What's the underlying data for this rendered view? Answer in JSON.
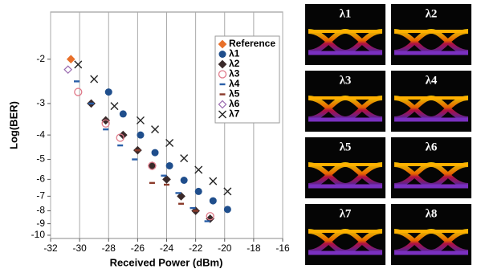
{
  "chart_data": {
    "type": "scatter",
    "xlabel": "Received Power (dBm)",
    "ylabel": "Log(BER)",
    "xlim": [
      -32,
      -16
    ],
    "xticks": [
      -32,
      -30,
      -28,
      -26,
      -24,
      -22,
      -20,
      -18,
      -16
    ],
    "ylim": [
      -1.3,
      -10.3
    ],
    "yticks": [
      -2,
      -3,
      -4,
      -5,
      -6,
      -7,
      -8,
      -9,
      -10
    ],
    "yscale": "loglog",
    "grid": "x",
    "legend": "upper right",
    "series": [
      {
        "name": "Reference",
        "color": "#e8702a",
        "marker": "diamond",
        "x": [
          -30.6
        ],
        "values": [
          -2.0
        ]
      },
      {
        "name": "λ1",
        "color": "#1f4e8c",
        "marker": "circle",
        "x": [
          -28,
          -27,
          -25.8,
          -24.8,
          -23.8,
          -22.8,
          -21.8,
          -20.8,
          -19.8
        ],
        "values": [
          -2.7,
          -3.3,
          -4.0,
          -4.7,
          -5.3,
          -6.05,
          -6.7,
          -7.3,
          -7.9
        ]
      },
      {
        "name": "λ2",
        "color": "#3a2a2a",
        "marker": "diamond",
        "x": [
          -29.2,
          -28.2,
          -27,
          -26,
          -25,
          -24,
          -23,
          -22,
          -21
        ],
        "values": [
          -3.0,
          -3.5,
          -4.0,
          -4.6,
          -5.3,
          -6.0,
          -7.0,
          -8.0,
          -8.6
        ]
      },
      {
        "name": "λ3",
        "color": "#e07a8a",
        "marker": "open-circle",
        "x": [
          -30.1,
          -28.2,
          -27.2,
          -25,
          -21
        ],
        "values": [
          -2.7,
          -3.6,
          -4.1,
          -5.3,
          -8.4
        ]
      },
      {
        "name": "λ4",
        "color": "#2a5fa8",
        "marker": "dash",
        "x": [
          -30.2,
          -29.2,
          -28.2,
          -27.2,
          -26.2,
          -24.2,
          -23.2,
          -22.2,
          -21.2
        ],
        "values": [
          -2.45,
          -3.0,
          -3.8,
          -4.4,
          -5.0,
          -5.8,
          -6.8,
          -7.8,
          -8.8
        ]
      },
      {
        "name": "λ5",
        "color": "#8a3a2a",
        "marker": "dash",
        "x": [
          -26,
          -25,
          -24,
          -23,
          -22
        ],
        "values": [
          -4.6,
          -6.2,
          -6.3,
          -7.5,
          -8.0
        ]
      },
      {
        "name": "λ6",
        "color": "#9a6ab0",
        "marker": "open-diamond",
        "x": [
          -30.8
        ],
        "values": [
          -2.2
        ]
      },
      {
        "name": "λ7",
        "color": "#222222",
        "marker": "x",
        "x": [
          -30.1,
          -29,
          -27.6,
          -25.8,
          -24.8,
          -23.8,
          -22.8,
          -21.8,
          -20.8,
          -19.8
        ],
        "values": [
          -2.1,
          -2.4,
          -3.07,
          -3.5,
          -3.8,
          -4.3,
          -4.95,
          -5.5,
          -6.1,
          -6.7
        ]
      }
    ]
  },
  "eye_diagrams": {
    "labels": [
      "λ1",
      "λ2",
      "λ3",
      "λ4",
      "λ5",
      "λ6",
      "λ7",
      "λ8"
    ]
  }
}
